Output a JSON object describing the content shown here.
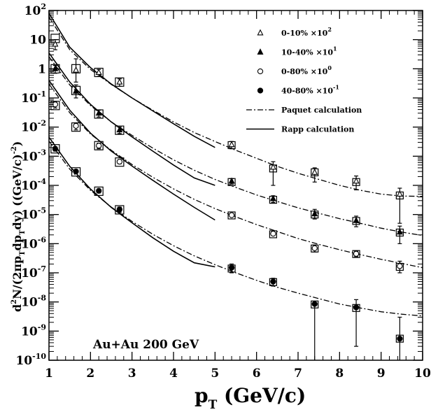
{
  "chart_data": {
    "type": "scatter",
    "xlabel_main": "p",
    "xlabel_sub": "T",
    "xlabel_unit": " (GeV/c)",
    "ylabel_parts": [
      "d",
      "2",
      "N/(2πp",
      "T",
      "dp",
      "T",
      "dy) ((GeV/c)",
      "-2",
      ")"
    ],
    "annotation": "Au+Au 200 GeV",
    "x_range": [
      1,
      10
    ],
    "y_range": [
      1e-10,
      100
    ],
    "y_scale": "log",
    "x_ticks": [
      {
        "v": 1,
        "label": "1"
      },
      {
        "v": 2,
        "label": "2"
      },
      {
        "v": 3,
        "label": "3"
      },
      {
        "v": 4,
        "label": "4"
      },
      {
        "v": 5,
        "label": "5"
      },
      {
        "v": 6,
        "label": "6"
      },
      {
        "v": 7,
        "label": "7"
      },
      {
        "v": 8,
        "label": "8"
      },
      {
        "v": 9,
        "label": "9"
      },
      {
        "v": 10,
        "label": "10"
      }
    ],
    "y_ticks": [
      {
        "v": 100,
        "base": "10",
        "exp": "2"
      },
      {
        "v": 10,
        "base": "10",
        "exp": ""
      },
      {
        "v": 1,
        "base": "1",
        "exp": ""
      },
      {
        "v": 0.1,
        "base": "10",
        "exp": "-1"
      },
      {
        "v": 0.01,
        "base": "10",
        "exp": "-2"
      },
      {
        "v": 0.001,
        "base": "10",
        "exp": "-3"
      },
      {
        "v": 0.0001,
        "base": "10",
        "exp": "-4"
      },
      {
        "v": 1e-05,
        "base": "10",
        "exp": "-5"
      },
      {
        "v": 1e-06,
        "base": "10",
        "exp": "-6"
      },
      {
        "v": 1e-07,
        "base": "10",
        "exp": "-7"
      },
      {
        "v": 1e-08,
        "base": "10",
        "exp": "-8"
      },
      {
        "v": 1e-09,
        "base": "10",
        "exp": "-9"
      },
      {
        "v": 1e-10,
        "base": "10",
        "exp": "-10"
      }
    ],
    "legend": [
      {
        "marker": "open-triangle",
        "text": "0-10% ×10",
        "sup": "2"
      },
      {
        "marker": "filled-triangle",
        "text": "10-40% ×10",
        "sup": "1"
      },
      {
        "marker": "open-circle",
        "text": "0-80% ×10",
        "sup": "0"
      },
      {
        "marker": "filled-circle",
        "text": "40-80% ×10",
        "sup": "-1"
      },
      {
        "marker": "dash-dot-line",
        "text": "Paquet calculation",
        "sup": ""
      },
      {
        "marker": "solid-line",
        "text": "Rapp calculation",
        "sup": ""
      }
    ],
    "series": [
      {
        "name": "0-10% ×10^2",
        "marker": "open-triangle",
        "points": [
          {
            "x": 1.15,
            "y": 7,
            "lo": 4.5,
            "hi": 10,
            "sys": 11
          },
          {
            "x": 1.65,
            "y": 0.9,
            "lo": 0.35,
            "hi": 2.2,
            "sys": 1.0
          },
          {
            "x": 2.2,
            "y": 0.75,
            "lo": 0.55,
            "hi": 0.95,
            "sys": 0.75
          },
          {
            "x": 2.7,
            "y": 0.35,
            "lo": 0.25,
            "hi": 0.45,
            "sys": 0.35
          },
          {
            "x": 5.4,
            "y": 0.0025,
            "lo": 0.0018,
            "hi": 0.0032,
            "sys": 0.0024
          },
          {
            "x": 6.4,
            "y": 0.00042,
            "lo": 0.0001,
            "hi": 0.00065,
            "sys": 0.00038
          },
          {
            "x": 7.4,
            "y": 0.00028,
            "lo": 0.00013,
            "hi": 0.0004,
            "sys": 0.00028
          },
          {
            "x": 8.4,
            "y": 0.00014,
            "lo": 7e-05,
            "hi": 0.00021,
            "sys": 0.00013
          },
          {
            "x": 9.45,
            "y": 5e-05,
            "lo": 5e-06,
            "hi": 8e-05,
            "sys": 4.5e-05
          }
        ]
      },
      {
        "name": "10-40% ×10^1",
        "marker": "filled-triangle",
        "points": [
          {
            "x": 1.15,
            "y": 1.0,
            "lo": 0.7,
            "hi": 1.3,
            "sys": 1.0
          },
          {
            "x": 1.65,
            "y": 0.17,
            "lo": 0.1,
            "hi": 0.28,
            "sys": 0.18
          },
          {
            "x": 2.2,
            "y": 0.03,
            "lo": 0.022,
            "hi": 0.038,
            "sys": 0.028
          },
          {
            "x": 2.7,
            "y": 0.008,
            "lo": 0.006,
            "hi": 0.01,
            "sys": 0.0078
          },
          {
            "x": 5.4,
            "y": 0.00014,
            "lo": 0.00011,
            "hi": 0.00017,
            "sys": 0.00013
          },
          {
            "x": 6.4,
            "y": 3.5e-05,
            "lo": 2.6e-05,
            "hi": 4.4e-05,
            "sys": 3.2e-05
          },
          {
            "x": 7.4,
            "y": 1.05e-05,
            "lo": 7e-06,
            "hi": 1.5e-05,
            "sys": 1e-05
          },
          {
            "x": 8.4,
            "y": 6.2e-06,
            "lo": 3.8e-06,
            "hi": 8.8e-06,
            "sys": 6e-06
          },
          {
            "x": 9.45,
            "y": 2.5e-06,
            "lo": 1e-06,
            "hi": 4e-06,
            "sys": 2.4e-06
          }
        ]
      },
      {
        "name": "0-80% ×10^0",
        "marker": "open-circle",
        "points": [
          {
            "x": 1.15,
            "y": 0.06,
            "lo": 0.045,
            "hi": 0.075,
            "sys": 0.055
          },
          {
            "x": 1.65,
            "y": 0.011,
            "lo": 0.008,
            "hi": 0.014,
            "sys": 0.01
          },
          {
            "x": 2.2,
            "y": 0.0023,
            "lo": 0.0018,
            "hi": 0.0028,
            "sys": 0.0023
          },
          {
            "x": 2.7,
            "y": 0.00065,
            "lo": 0.00055,
            "hi": 0.00075,
            "sys": 0.00063
          },
          {
            "x": 5.4,
            "y": 9.5e-06,
            "lo": 8.5e-06,
            "hi": 1.05e-05,
            "sys": 9.3e-06
          },
          {
            "x": 6.4,
            "y": 2.2e-06,
            "lo": 1.9e-06,
            "hi": 2.5e-06,
            "sys": 2.1e-06
          },
          {
            "x": 7.4,
            "y": 7e-07,
            "lo": 5.2e-07,
            "hi": 9e-07,
            "sys": 6.8e-07
          },
          {
            "x": 8.4,
            "y": 4.5e-07,
            "lo": 3.6e-07,
            "hi": 5.5e-07,
            "sys": 4.4e-07
          },
          {
            "x": 9.45,
            "y": 1.7e-07,
            "lo": 1e-07,
            "hi": 2.5e-07,
            "sys": 1.6e-07
          }
        ]
      },
      {
        "name": "40-80% ×10^-1",
        "marker": "filled-circle",
        "points": [
          {
            "x": 1.15,
            "y": 0.0018,
            "lo": 0.0015,
            "hi": 0.0021,
            "sys": 0.0018
          },
          {
            "x": 1.65,
            "y": 0.0003,
            "lo": 0.00026,
            "hi": 0.00034,
            "sys": 0.00029
          },
          {
            "x": 2.2,
            "y": 6.5e-05,
            "lo": 5.5e-05,
            "hi": 7.5e-05,
            "sys": 6.3e-05
          },
          {
            "x": 2.7,
            "y": 1.5e-05,
            "lo": 1.2e-05,
            "hi": 1.8e-05,
            "sys": 1.45e-05
          },
          {
            "x": 5.4,
            "y": 1.5e-07,
            "lo": 1e-07,
            "hi": 2e-07,
            "sys": 1.4e-07
          },
          {
            "x": 6.4,
            "y": 5e-08,
            "lo": 3.5e-08,
            "hi": 6.5e-08,
            "sys": 4.8e-08
          },
          {
            "x": 7.4,
            "y": 8.5e-09,
            "lo": 1e-10,
            "hi": 8.5e-09,
            "sys": 8.2e-09
          },
          {
            "x": 8.4,
            "y": 6.5e-09,
            "lo": 3e-10,
            "hi": 1.2e-08,
            "sys": 6.2e-09
          },
          {
            "x": 9.45,
            "y": 5.5e-10,
            "lo": 1e-10,
            "hi": 3e-09,
            "sys": 5.5e-10
          }
        ]
      }
    ],
    "curves": [
      {
        "name": "Rapp calculation",
        "style": "solid",
        "points": [
          [
            1,
            80
          ],
          [
            1.5,
            5.5
          ],
          [
            2,
            1.1
          ],
          [
            2.5,
            0.3
          ],
          [
            3,
            0.1
          ],
          [
            3.5,
            0.036
          ],
          [
            4,
            0.013
          ],
          [
            4.5,
            0.0048
          ],
          [
            5,
            0.002
          ]
        ]
      },
      {
        "name": "Rapp calculation",
        "style": "solid",
        "points": [
          [
            1,
            3.5
          ],
          [
            1.5,
            0.35
          ],
          [
            2,
            0.06
          ],
          [
            2.5,
            0.015
          ],
          [
            3,
            0.0046
          ],
          [
            3.5,
            0.0015
          ],
          [
            4,
            0.0005
          ],
          [
            4.5,
            0.00018
          ],
          [
            5,
            0.0001
          ]
        ]
      },
      {
        "name": "Rapp calculation",
        "style": "solid",
        "points": [
          [
            1,
            0.4
          ],
          [
            1.5,
            0.038
          ],
          [
            2,
            0.0062
          ],
          [
            2.5,
            0.0015
          ],
          [
            3,
            0.00046
          ],
          [
            3.5,
            0.00015
          ],
          [
            4,
            5e-05
          ],
          [
            4.5,
            1.75e-05
          ],
          [
            5,
            6.5e-06
          ]
        ]
      },
      {
        "name": "Rapp calculation",
        "style": "solid",
        "points": [
          [
            1,
            0.0045
          ],
          [
            1.5,
            0.00045
          ],
          [
            2,
            7.5e-05
          ],
          [
            2.5,
            1.75e-05
          ],
          [
            3,
            5.2e-06
          ],
          [
            3.5,
            1.6e-06
          ],
          [
            4,
            5.5e-07
          ],
          [
            4.5,
            2.2e-07
          ],
          [
            5,
            1.6e-07
          ]
        ]
      },
      {
        "name": "Paquet calculation",
        "style": "dashdot",
        "points": [
          [
            1,
            60
          ],
          [
            1.5,
            4.5
          ],
          [
            2,
            0.95
          ],
          [
            2.5,
            0.29
          ],
          [
            3,
            0.1
          ],
          [
            3.5,
            0.038
          ],
          [
            4,
            0.015
          ],
          [
            4.5,
            0.0065
          ],
          [
            5,
            0.0032
          ],
          [
            5.5,
            0.0016
          ],
          [
            6,
            0.00085
          ],
          [
            6.5,
            0.00045
          ],
          [
            7,
            0.00026
          ],
          [
            7.5,
            0.00016
          ],
          [
            8,
            0.0001
          ],
          [
            8.5,
            6.8e-05
          ],
          [
            9,
            5e-05
          ],
          [
            9.5,
            4.3e-05
          ],
          [
            10,
            4.2e-05
          ]
        ]
      },
      {
        "name": "Paquet calculation",
        "style": "dashdot",
        "points": [
          [
            1,
            2.6
          ],
          [
            1.5,
            0.28
          ],
          [
            2,
            0.055
          ],
          [
            2.5,
            0.015
          ],
          [
            3,
            0.0052
          ],
          [
            3.5,
            0.0019
          ],
          [
            4,
            0.00075
          ],
          [
            4.5,
            0.00033
          ],
          [
            5,
            0.00016
          ],
          [
            5.5,
            8.5e-05
          ],
          [
            6,
            4.7e-05
          ],
          [
            6.5,
            2.8e-05
          ],
          [
            7,
            1.7e-05
          ],
          [
            7.5,
            1.1e-05
          ],
          [
            8,
            7.2e-06
          ],
          [
            8.5,
            5e-06
          ],
          [
            9,
            3.4e-06
          ],
          [
            9.5,
            2.5e-06
          ],
          [
            10,
            1.9e-06
          ]
        ]
      },
      {
        "name": "Paquet calculation",
        "style": "dashdot",
        "points": [
          [
            1,
            0.3
          ],
          [
            1.5,
            0.031
          ],
          [
            2,
            0.0058
          ],
          [
            2.5,
            0.0016
          ],
          [
            3,
            0.00052
          ],
          [
            3.5,
            0.00019
          ],
          [
            4,
            7.6e-05
          ],
          [
            4.5,
            3.3e-05
          ],
          [
            5,
            1.6e-05
          ],
          [
            5.5,
            8.3e-06
          ],
          [
            6,
            4.5e-06
          ],
          [
            6.5,
            2.6e-06
          ],
          [
            7,
            1.5e-06
          ],
          [
            7.5,
            9.5e-07
          ],
          [
            8,
            6.2e-07
          ],
          [
            8.5,
            4.2e-07
          ],
          [
            9,
            2.9e-07
          ],
          [
            9.5,
            2.1e-07
          ],
          [
            10,
            1.5e-07
          ]
        ]
      },
      {
        "name": "Paquet calculation",
        "style": "dashdot",
        "points": [
          [
            1,
            0.0033
          ],
          [
            1.5,
            0.00036
          ],
          [
            2,
            6.8e-05
          ],
          [
            2.5,
            1.8e-05
          ],
          [
            3,
            5.8e-06
          ],
          [
            3.5,
            2.1e-06
          ],
          [
            4,
            8.5e-07
          ],
          [
            4.5,
            3.8e-07
          ],
          [
            5,
            1.9e-07
          ],
          [
            5.5,
            1e-07
          ],
          [
            6,
            5.5e-08
          ],
          [
            6.5,
            3.2e-08
          ],
          [
            7,
            2e-08
          ],
          [
            7.5,
            1.3e-08
          ],
          [
            8,
            8.5e-09
          ],
          [
            8.5,
            6.2e-09
          ],
          [
            9,
            4.6e-09
          ],
          [
            9.5,
            3.8e-09
          ],
          [
            10,
            3.3e-09
          ]
        ]
      }
    ]
  }
}
